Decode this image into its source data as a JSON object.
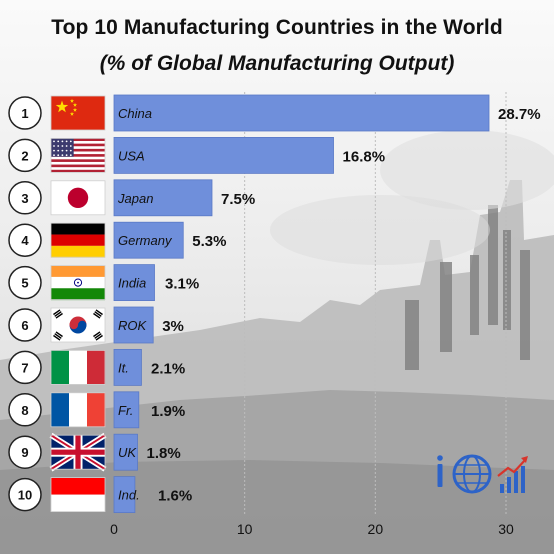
{
  "title": "Top 10 Manufacturing Countries in the World",
  "subtitle": "(% of Global Manufacturing Output)",
  "colors": {
    "bar": "#6f8fdb",
    "bar_stroke": "#5a79c6",
    "text": "#111111",
    "bg_sky": "#f1f1f1",
    "bg_factory": "#8c8c8c",
    "grid": "#bdbdbd",
    "logo_blue": "#2d63c8",
    "logo_red": "#d8342b"
  },
  "logo": {
    "icons": [
      "info-icon",
      "globe-icon",
      "growth-chart-icon"
    ]
  },
  "chart_data": {
    "type": "bar",
    "orientation": "horizontal",
    "title": "Top 10 Manufacturing Countries in the World",
    "subtitle": "(% of Global Manufacturing Output)",
    "xlabel": "",
    "ylabel": "",
    "xlim": [
      0,
      30
    ],
    "xticks": [
      0,
      10,
      20,
      30
    ],
    "grid": true,
    "legend": "none",
    "ranks": [
      "1",
      "2",
      "3",
      "4",
      "5",
      "6",
      "7",
      "8",
      "9",
      "10"
    ],
    "categories": [
      "China",
      "USA",
      "Japan",
      "Germany",
      "India",
      "ROK",
      "It.",
      "Fr.",
      "UK",
      "Ind."
    ],
    "flags": [
      "china-flag-icon",
      "usa-flag-icon",
      "japan-flag-icon",
      "germany-flag-icon",
      "india-flag-icon",
      "south-korea-flag-icon",
      "italy-flag-icon",
      "france-flag-icon",
      "uk-flag-icon",
      "indonesia-flag-icon"
    ],
    "values": [
      28.7,
      16.8,
      7.5,
      5.3,
      3.1,
      3.0,
      2.1,
      1.9,
      1.8,
      1.6
    ],
    "value_labels": [
      "28.7%",
      "16.8%",
      "7.5%",
      "5.3%",
      "3.1%",
      "3%",
      "2.1%",
      "1.9%",
      "1.8%",
      "1.6%"
    ]
  }
}
